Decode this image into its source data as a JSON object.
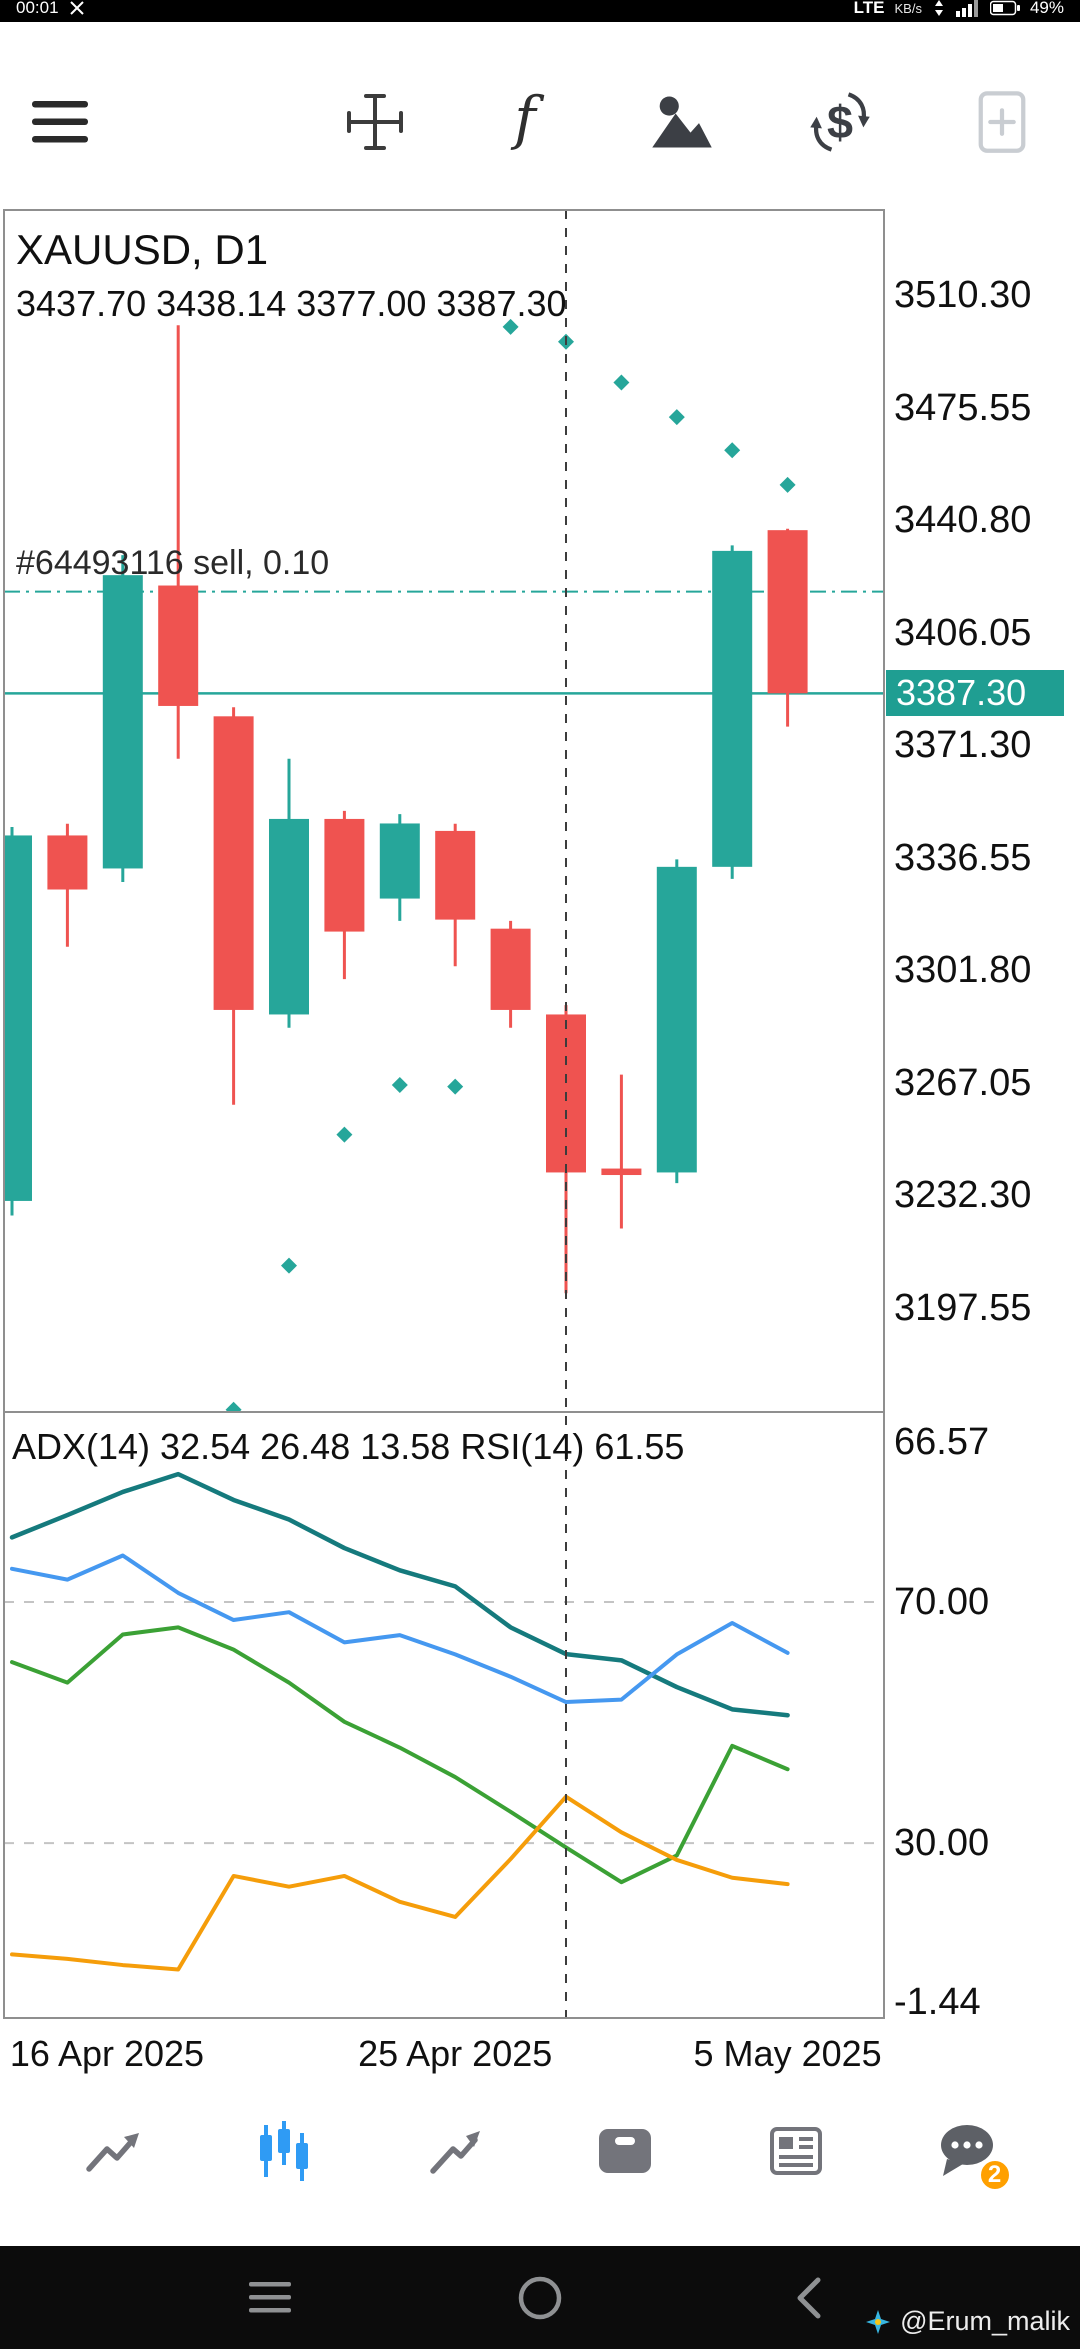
{
  "status_bar": {
    "time": "00:01",
    "network": "LTE",
    "speed_unit": "KB/s",
    "battery": "49%"
  },
  "toolbar": {
    "function_glyph": "f",
    "symbols_glyph": "$",
    "icons": [
      "menu",
      "crosshair",
      "indicators",
      "objects",
      "symbols",
      "new-order"
    ]
  },
  "chart": {
    "symbol_timeframe": "XAUUSD, D1",
    "ohlc_text": "3437.70 3438.14 3377.00 3387.30"
  },
  "chart_data": {
    "type": "candlestick",
    "title": "XAUUSD, D1",
    "ohlc_display": {
      "open": "3437.70",
      "high": "3438.14",
      "low": "3377.00",
      "close": "3387.30"
    },
    "current_price": "3387.30",
    "position": {
      "ticket": "#64493116",
      "type": "sell",
      "volume": "0.10",
      "label": "#64493116 sell, 0.10",
      "price": 3418.7
    },
    "price_axis_ticks": [
      3510.3,
      3475.55,
      3440.8,
      3406.05,
      3371.3,
      3336.55,
      3301.8,
      3267.05,
      3232.3,
      3197.55
    ],
    "price_scale": {
      "top": 3536.6,
      "bottom": 3165.3
    },
    "candles": [
      {
        "o": 3230.5,
        "h": 3346.0,
        "l": 3226.0,
        "c": 3343.4
      },
      {
        "o": 3343.4,
        "h": 3347.0,
        "l": 3309.0,
        "c": 3326.7
      },
      {
        "o": 3333.2,
        "h": 3430.0,
        "l": 3329.0,
        "c": 3423.8
      },
      {
        "o": 3420.6,
        "h": 3501.0,
        "l": 3367.1,
        "c": 3383.4
      },
      {
        "o": 3380.2,
        "h": 3383.0,
        "l": 3260.2,
        "c": 3289.5
      },
      {
        "o": 3288.1,
        "h": 3367.1,
        "l": 3284.0,
        "c": 3348.5
      },
      {
        "o": 3348.5,
        "h": 3351.0,
        "l": 3299.0,
        "c": 3313.7
      },
      {
        "o": 3323.9,
        "h": 3350.0,
        "l": 3317.0,
        "c": 3347.1
      },
      {
        "o": 3344.8,
        "h": 3347.0,
        "l": 3303.0,
        "c": 3317.4
      },
      {
        "o": 3314.6,
        "h": 3317.0,
        "l": 3284.0,
        "c": 3289.5
      },
      {
        "o": 3288.1,
        "h": 3291.0,
        "l": 3202.0,
        "c": 3239.3
      },
      {
        "o": 3240.5,
        "h": 3269.5,
        "l": 3222.0,
        "c": 3238.5
      },
      {
        "o": 3239.3,
        "h": 3336.0,
        "l": 3236.0,
        "c": 3333.7
      },
      {
        "o": 3333.7,
        "h": 3433.0,
        "l": 3330.0,
        "c": 3431.3
      },
      {
        "o": 3437.7,
        "h": 3438.14,
        "l": 3377.0,
        "c": 3387.3
      }
    ],
    "sar_dots": [
      {
        "i": 4,
        "p": 3166.0
      },
      {
        "i": 5,
        "p": 3210.5
      },
      {
        "i": 6,
        "p": 3251.0
      },
      {
        "i": 7,
        "p": 3266.3
      },
      {
        "i": 8,
        "p": 3265.8
      },
      {
        "i": 9,
        "p": 3500.5
      },
      {
        "i": 10,
        "p": 3495.9
      },
      {
        "i": 11,
        "p": 3483.3
      },
      {
        "i": 12,
        "p": 3472.6
      },
      {
        "i": 13,
        "p": 3462.4
      },
      {
        "i": 14,
        "p": 3451.7
      }
    ],
    "dashed_vline_index": 10,
    "date_ticks": [
      {
        "index": 1,
        "label": "16 Apr 2025"
      },
      {
        "index": 8,
        "label": "25 Apr 2025"
      },
      {
        "index": 14,
        "label": "5 May 2025"
      }
    ],
    "indicator_pane": {
      "label": "ADX(14) 32.54 26.48 13.58 RSI(14) 61.55",
      "values": {
        "adx": 32.54,
        "plus_di": 26.48,
        "minus_di": 13.58,
        "rsi": 61.55
      },
      "adx_scale": {
        "top": 66.57,
        "bottom": -1.44
      },
      "rsi_scale": {
        "top": 101.5,
        "bottom": 1.0
      },
      "levels": [
        70,
        30
      ],
      "axis_labels": [
        {
          "value": 66.57,
          "scale": "adx"
        },
        {
          "value": 70,
          "scale": "rsi"
        },
        {
          "value": 30,
          "scale": "rsi"
        },
        {
          "value": -1.44,
          "scale": "adx"
        }
      ],
      "series": {
        "adx": [
          52.5,
          55.0,
          57.6,
          59.6,
          56.7,
          54.5,
          51.3,
          48.8,
          47.0,
          42.4,
          39.4,
          38.7,
          35.7,
          33.2,
          32.54
        ],
        "plus_di": [
          38.5,
          36.2,
          41.6,
          42.4,
          39.9,
          36.2,
          31.8,
          28.9,
          25.6,
          21.7,
          17.7,
          13.8,
          16.8,
          29.1,
          26.48
        ],
        "minus_di": [
          5.7,
          5.2,
          4.5,
          4.0,
          14.5,
          13.3,
          14.5,
          11.6,
          9.9,
          16.4,
          23.4,
          19.4,
          16.3,
          14.3,
          13.58
        ],
        "rsi": [
          75.5,
          73.7,
          77.7,
          71.5,
          67.0,
          68.3,
          63.3,
          64.5,
          61.3,
          57.6,
          53.4,
          53.8,
          61.3,
          66.5,
          61.55
        ]
      }
    },
    "colors": {
      "bull": "#26a69a",
      "bear": "#ef5350",
      "line_teal": "#1f9e92",
      "adx": "#157a7d",
      "rsi": "#4598f0",
      "plus_di": "#3ba135",
      "minus_di": "#f59d0a"
    }
  },
  "bottom_nav": {
    "items": [
      "quotes",
      "charts",
      "trade",
      "history",
      "news",
      "messages"
    ],
    "active_item": "charts",
    "active_color": "#2f9bf4",
    "messages_badge": "2",
    "badge_color": "#ffa000"
  },
  "android_nav": {
    "buttons": [
      "menu",
      "home",
      "back"
    ]
  },
  "watermark": {
    "text": "@Erum_malik"
  }
}
